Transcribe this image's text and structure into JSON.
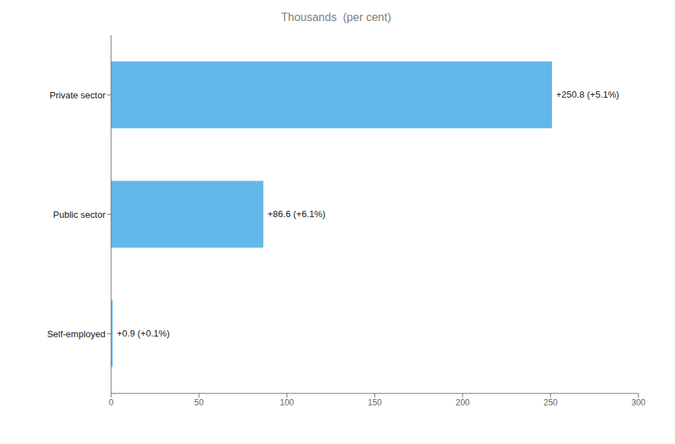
{
  "chart_data": {
    "type": "bar",
    "orientation": "horizontal",
    "title": "Thousands  (per cent)",
    "categories": [
      "Self-employed",
      "Public sector",
      "Private sector"
    ],
    "values": [
      0.9,
      86.6,
      250.8
    ],
    "value_labels": [
      "+0.9 (+0.1%)",
      "+86.6 (+6.1%)",
      "+250.8 (+5.1%)"
    ],
    "color": "#62B8E8",
    "xlim": [
      0,
      300
    ],
    "xticks": [
      0,
      50,
      100,
      150,
      200,
      250,
      300
    ],
    "grid": false,
    "data_labels": true
  }
}
